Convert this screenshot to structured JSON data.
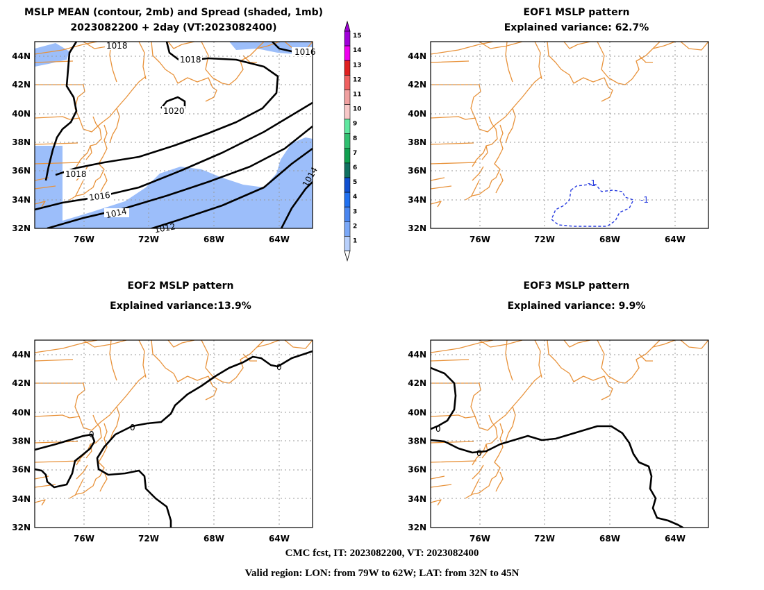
{
  "panels": [
    {
      "title_line1": "MSLP MEAN (contour, 2mb) and Spread (shaded, 1mb)",
      "title_line2": "2023082200 + 2day (VT:2023082400)"
    },
    {
      "title_line1": "EOF1 MSLP pattern",
      "title_line2": "Explained variance: 62.7%"
    },
    {
      "title_line1": "EOF2 MSLP pattern",
      "title_line2": "Explained variance:13.9%"
    },
    {
      "title_line1": "EOF3 MSLP pattern",
      "title_line2": "Explained variance: 9.9%"
    }
  ],
  "axes": {
    "lat_labels": [
      "44N",
      "42N",
      "40N",
      "38N",
      "36N",
      "34N",
      "32N"
    ],
    "lon_labels": [
      "76W",
      "72W",
      "68W",
      "64W"
    ]
  },
  "colorbar": {
    "labels": [
      "15",
      "14",
      "13",
      "12",
      "11",
      "10",
      "9",
      "8",
      "7",
      "6",
      "5",
      "4",
      "3",
      "2",
      "1"
    ],
    "colors": [
      "#a000d8",
      "#f000f0",
      "#e02020",
      "#f06060",
      "#f0a0a0",
      "#f8c8c8",
      "#60e8a0",
      "#30c070",
      "#10a050",
      "#107060",
      "#1050d0",
      "#2070f0",
      "#4a86f0",
      "#7aa8f8",
      "#b8d0fc"
    ]
  },
  "contour_labels": {
    "mean": [
      "1018",
      "1018",
      "1016",
      "1020",
      "1018",
      "1016",
      "1014",
      "1012",
      "1014"
    ],
    "eof1": [
      "-1",
      "-1"
    ],
    "eof2": [
      "0",
      "0",
      "0"
    ],
    "eof3": [
      "0",
      "0"
    ]
  },
  "footer": {
    "line1": "CMC fcst, IT: 2023082200, VT: 2023082400",
    "line2": "Valid region: LON: from 79W to 62W; LAT: from 32N to 45N"
  }
}
